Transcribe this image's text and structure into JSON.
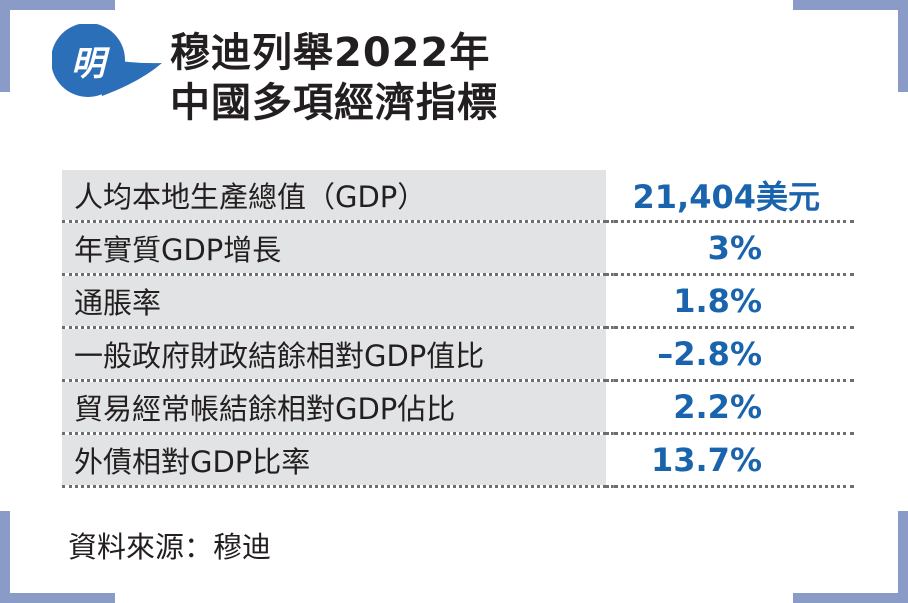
{
  "badge": {
    "text": "明",
    "color": "#2a6fb7"
  },
  "title": {
    "line1": "穆迪列舉2022年",
    "line2": "中國多項經濟指標"
  },
  "rows": [
    {
      "label": "人均本地生產總值（GDP）",
      "value": "21,404美元"
    },
    {
      "label": "年實質GDP增長",
      "value": "3%"
    },
    {
      "label": "通脹率",
      "value": "1.8%"
    },
    {
      "label": "一般政府財政結餘相對GDP值比",
      "value": "–2.8%"
    },
    {
      "label": "貿易經常帳結餘相對GDP佔比",
      "value": "2.2%"
    },
    {
      "label": "外債相對GDP比率",
      "value": "13.7%"
    }
  ],
  "source": "資料來源：穆迪",
  "colors": {
    "value": "#1a64ad",
    "label_bg": "#e2e3e4",
    "frame": "#8a9bc7"
  }
}
